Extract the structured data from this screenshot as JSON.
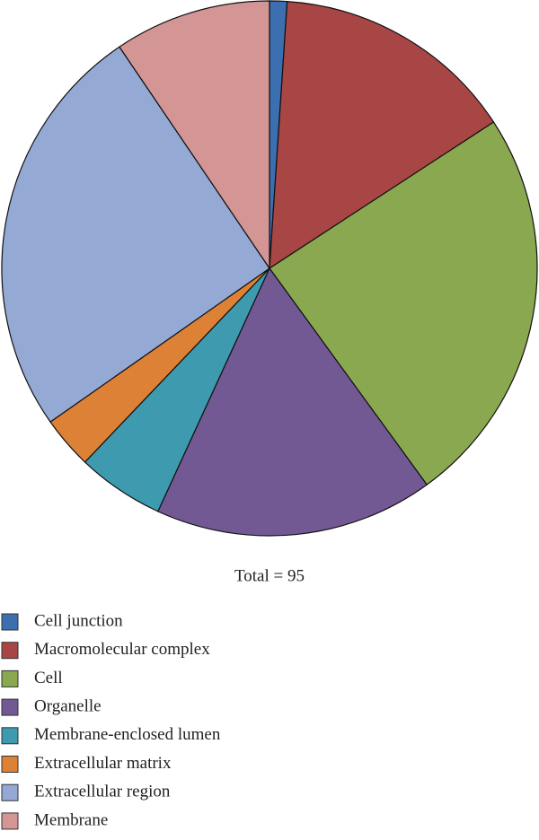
{
  "chart_data": {
    "type": "pie",
    "subtitle": "Total = 95",
    "categories": [
      "Cell junction",
      "Macromolecular complex",
      "Cell",
      "Organelle",
      "Membrane-enclosed lumen",
      "Extracellular matrix",
      "Extracellular region",
      "Membrane"
    ],
    "values": [
      1,
      14,
      23,
      16,
      5,
      3,
      24,
      9
    ],
    "colors": [
      "#3b6fb0",
      "#a84545",
      "#8aa84f",
      "#725993",
      "#3e9aae",
      "#dd8137",
      "#94aad5",
      "#d49595"
    ],
    "legend": "bottom-left"
  }
}
